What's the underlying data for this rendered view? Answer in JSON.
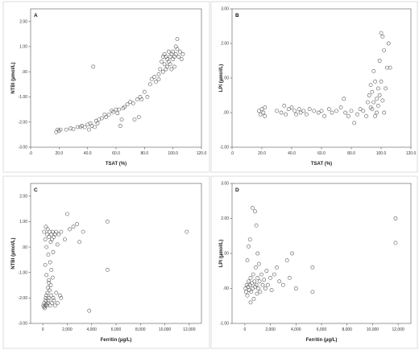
{
  "chart_data": [
    {
      "type": "scatter",
      "panel": "A",
      "xlabel": "TSAT (%)",
      "ylabel": "NTBI (µmol/L)",
      "xlim": [
        0,
        120
      ],
      "ylim": [
        -3,
        2.5
      ],
      "xticks": [
        0,
        20,
        40,
        60,
        80,
        100,
        120
      ],
      "xtick_labels": [
        ".0",
        "20.0",
        "40.0",
        "60.0",
        "80.0",
        "100.0",
        "120.0"
      ],
      "yticks": [
        -3,
        -2,
        -1,
        0,
        1,
        2
      ],
      "ytick_labels": [
        "-3.00",
        "-2.00",
        "-1.00",
        ".00",
        "1.00",
        "2.00"
      ],
      "grid": false,
      "points": [
        [
          18,
          -2.4
        ],
        [
          19,
          -2.3
        ],
        [
          20,
          -2.35
        ],
        [
          21,
          -2.3
        ],
        [
          25,
          -2.3
        ],
        [
          28,
          -2.25
        ],
        [
          30,
          -2.28
        ],
        [
          33,
          -2.2
        ],
        [
          35,
          -2.2
        ],
        [
          36,
          -2.15
        ],
        [
          38,
          -2.2
        ],
        [
          40,
          -2.1
        ],
        [
          41,
          -2.3
        ],
        [
          42,
          -2.05
        ],
        [
          43,
          -2.15
        ],
        [
          45,
          -2.2
        ],
        [
          46,
          -1.95
        ],
        [
          47,
          -2.05
        ],
        [
          48,
          -1.9
        ],
        [
          50,
          -1.85
        ],
        [
          52,
          -1.7
        ],
        [
          53,
          -1.8
        ],
        [
          55,
          -1.7
        ],
        [
          57,
          -1.55
        ],
        [
          58,
          -1.6
        ],
        [
          60,
          -1.5
        ],
        [
          61,
          -1.65
        ],
        [
          62,
          -1.5
        ],
        [
          63,
          -2.15
        ],
        [
          64,
          -1.9
        ],
        [
          65,
          -1.45
        ],
        [
          66,
          -1.4
        ],
        [
          68,
          -1.3
        ],
        [
          70,
          -1.2
        ],
        [
          72,
          -1.25
        ],
        [
          73,
          -1.9
        ],
        [
          75,
          -1.1
        ],
        [
          76,
          -1.8
        ],
        [
          77,
          -1.0
        ],
        [
          78,
          -1.1
        ],
        [
          80,
          -0.8
        ],
        [
          82,
          -1.0
        ],
        [
          84,
          -0.5
        ],
        [
          85,
          -0.3
        ],
        [
          87,
          -0.2
        ],
        [
          88,
          -0.4
        ],
        [
          90,
          -0.1
        ],
        [
          90,
          -0.3
        ],
        [
          91,
          0.1
        ],
        [
          92,
          0.4
        ],
        [
          93,
          0.6
        ],
        [
          93,
          0.0
        ],
        [
          94,
          0.3
        ],
        [
          94,
          0.7
        ],
        [
          95,
          0.6
        ],
        [
          95,
          0.1
        ],
        [
          96,
          0.5
        ],
        [
          96,
          0.2
        ],
        [
          97,
          0.8
        ],
        [
          97,
          0.4
        ],
        [
          98,
          0.6
        ],
        [
          98,
          0.3
        ],
        [
          99,
          0.7
        ],
        [
          99,
          0.1
        ],
        [
          100,
          0.8
        ],
        [
          100,
          0.5
        ],
        [
          101,
          0.6
        ],
        [
          101,
          0.2
        ],
        [
          102,
          1.0
        ],
        [
          102,
          0.7
        ],
        [
          103,
          0.9
        ],
        [
          103,
          1.3
        ],
        [
          104,
          0.6
        ],
        [
          105,
          0.8
        ],
        [
          106,
          0.5
        ],
        [
          107,
          0.7
        ],
        [
          44,
          0.2
        ]
      ]
    },
    {
      "type": "scatter",
      "panel": "B",
      "xlabel": "TSAT (%)",
      "ylabel": "LPI (µmol/L)",
      "xlim": [
        0,
        120
      ],
      "ylim": [
        -1,
        3
      ],
      "xticks": [
        0,
        20,
        40,
        60,
        80,
        100,
        120
      ],
      "xtick_labels": [
        ".0",
        "20.0",
        "40.0",
        "60.0",
        "80.0",
        "100.0",
        "120.0"
      ],
      "yticks": [
        -1,
        0,
        1,
        2,
        3
      ],
      "ytick_labels": [
        "-1.00",
        ".00",
        "1.00",
        "2.00",
        "3.00"
      ],
      "grid": false,
      "points": [
        [
          18,
          0.05
        ],
        [
          19,
          -0.05
        ],
        [
          20,
          0.1
        ],
        [
          21,
          0.0
        ],
        [
          22,
          0.15
        ],
        [
          22,
          -0.1
        ],
        [
          30,
          0.05
        ],
        [
          33,
          0.0
        ],
        [
          35,
          0.2
        ],
        [
          36,
          -0.05
        ],
        [
          38,
          0.1
        ],
        [
          40,
          0.15
        ],
        [
          42,
          0.05
        ],
        [
          43,
          -0.05
        ],
        [
          45,
          0.1
        ],
        [
          46,
          0.0
        ],
        [
          48,
          0.05
        ],
        [
          50,
          -0.05
        ],
        [
          52,
          0.1
        ],
        [
          55,
          0.05
        ],
        [
          58,
          0.0
        ],
        [
          60,
          0.05
        ],
        [
          62,
          -0.1
        ],
        [
          65,
          0.1
        ],
        [
          67,
          0.0
        ],
        [
          70,
          0.05
        ],
        [
          73,
          0.15
        ],
        [
          75,
          0.4
        ],
        [
          76,
          0.0
        ],
        [
          78,
          -0.1
        ],
        [
          80,
          0.05
        ],
        [
          82,
          -0.3
        ],
        [
          84,
          -0.05
        ],
        [
          86,
          0.1
        ],
        [
          88,
          0.05
        ],
        [
          90,
          -0.1
        ],
        [
          91,
          0.3
        ],
        [
          92,
          0.5
        ],
        [
          93,
          0.8
        ],
        [
          93,
          0.15
        ],
        [
          94,
          0.6
        ],
        [
          95,
          1.2
        ],
        [
          95,
          0.3
        ],
        [
          96,
          0.9
        ],
        [
          96,
          -0.1
        ],
        [
          97,
          0.4
        ],
        [
          98,
          0.7
        ],
        [
          98,
          0.2
        ],
        [
          99,
          1.5
        ],
        [
          99,
          0.5
        ],
        [
          100,
          2.3
        ],
        [
          100,
          0.9
        ],
        [
          101,
          2.2
        ],
        [
          101,
          0.35
        ],
        [
          102,
          1.8
        ],
        [
          103,
          0.7
        ],
        [
          104,
          1.3
        ],
        [
          105,
          2.0
        ],
        [
          106,
          1.3
        ],
        [
          97,
          0.0
        ],
        [
          102,
          0.0
        ],
        [
          94,
          0.1
        ]
      ]
    },
    {
      "type": "scatter",
      "panel": "C",
      "xlabel": "Ferritin (µg/L)",
      "ylabel": "NTBI (µmol/L)",
      "xlim": [
        -1000,
        13000
      ],
      "ylim": [
        -3,
        2.5
      ],
      "xticks": [
        0,
        2000,
        4000,
        6000,
        8000,
        10000,
        12000
      ],
      "xtick_labels": [
        "0",
        "2,000",
        "4,000",
        "6,000",
        "8,000",
        "10,000",
        "12,000"
      ],
      "yticks": [
        -3,
        -2,
        -1,
        0,
        1,
        2
      ],
      "ytick_labels": [
        "-3.00",
        "-2.00",
        "-1.00",
        ".00",
        "1.00",
        "2.00"
      ],
      "grid": false,
      "points": [
        [
          50,
          -2.3
        ],
        [
          100,
          -2.35
        ],
        [
          120,
          -2.2
        ],
        [
          150,
          -2.4
        ],
        [
          200,
          -2.3
        ],
        [
          220,
          -2.1
        ],
        [
          250,
          -2.0
        ],
        [
          280,
          -2.25
        ],
        [
          300,
          -1.9
        ],
        [
          350,
          -2.3
        ],
        [
          380,
          -1.8
        ],
        [
          400,
          -2.2
        ],
        [
          420,
          -1.6
        ],
        [
          450,
          -2.1
        ],
        [
          480,
          -1.4
        ],
        [
          500,
          -2.0
        ],
        [
          550,
          -1.7
        ],
        [
          600,
          -2.3
        ],
        [
          650,
          -1.5
        ],
        [
          700,
          -1.9
        ],
        [
          750,
          -2.2
        ],
        [
          800,
          -1.2
        ],
        [
          850,
          -2.0
        ],
        [
          900,
          -2.1
        ],
        [
          1000,
          -2.3
        ],
        [
          1100,
          -1.8
        ],
        [
          1200,
          -2.2
        ],
        [
          1400,
          -1.9
        ],
        [
          1500,
          -2.0
        ],
        [
          100,
          0.6
        ],
        [
          200,
          0.3
        ],
        [
          250,
          0.8
        ],
        [
          300,
          0.0
        ],
        [
          350,
          0.5
        ],
        [
          400,
          0.7
        ],
        [
          450,
          -0.3
        ],
        [
          500,
          0.4
        ],
        [
          550,
          0.6
        ],
        [
          600,
          -0.6
        ],
        [
          650,
          0.2
        ],
        [
          700,
          0.5
        ],
        [
          750,
          0.3
        ],
        [
          800,
          0.6
        ],
        [
          850,
          -0.2
        ],
        [
          900,
          0.4
        ],
        [
          1000,
          0.5
        ],
        [
          1100,
          0.6
        ],
        [
          1200,
          0.1
        ],
        [
          1300,
          0.5
        ],
        [
          1500,
          0.6
        ],
        [
          1800,
          0.3
        ],
        [
          2000,
          1.3
        ],
        [
          2200,
          0.7
        ],
        [
          2500,
          0.8
        ],
        [
          2800,
          0.9
        ],
        [
          3000,
          0.2
        ],
        [
          3300,
          0.6
        ],
        [
          3800,
          -2.5
        ],
        [
          5300,
          1.0
        ],
        [
          5300,
          -0.9
        ],
        [
          11800,
          0.6
        ],
        [
          300,
          -1.1
        ],
        [
          500,
          -1.3
        ],
        [
          700,
          -0.9
        ],
        [
          200,
          -0.7
        ]
      ]
    },
    {
      "type": "scatter",
      "panel": "D",
      "xlabel": "Ferritin (µg/L)",
      "ylabel": "LPI (µmol/L)",
      "xlim": [
        -1000,
        13000
      ],
      "ylim": [
        -1,
        3
      ],
      "xticks": [
        0,
        2000,
        4000,
        6000,
        8000,
        10000,
        12000
      ],
      "xtick_labels": [
        "0",
        "2,000",
        "4,000",
        "6,000",
        "8,000",
        "10,000",
        "12,000"
      ],
      "yticks": [
        -1,
        0,
        1,
        2,
        3
      ],
      "ytick_labels": [
        "-1.00",
        ".00",
        "1.00",
        "2.00",
        "3.00"
      ],
      "grid": false,
      "points": [
        [
          50,
          0.0
        ],
        [
          100,
          -0.1
        ],
        [
          150,
          0.1
        ],
        [
          200,
          -0.2
        ],
        [
          250,
          0.05
        ],
        [
          300,
          0.2
        ],
        [
          350,
          -0.05
        ],
        [
          400,
          0.1
        ],
        [
          450,
          0.3
        ],
        [
          500,
          -0.1
        ],
        [
          550,
          0.15
        ],
        [
          600,
          0.0
        ],
        [
          650,
          0.4
        ],
        [
          700,
          -0.3
        ],
        [
          750,
          0.2
        ],
        [
          800,
          0.05
        ],
        [
          850,
          0.6
        ],
        [
          900,
          0.1
        ],
        [
          950,
          -0.15
        ],
        [
          1000,
          0.3
        ],
        [
          1050,
          0.0
        ],
        [
          1100,
          0.7
        ],
        [
          1150,
          0.2
        ],
        [
          1200,
          -0.1
        ],
        [
          1300,
          0.4
        ],
        [
          1400,
          0.1
        ],
        [
          1500,
          0.25
        ],
        [
          1600,
          0.0
        ],
        [
          1700,
          0.5
        ],
        [
          1800,
          0.1
        ],
        [
          2000,
          0.3
        ],
        [
          2100,
          -0.05
        ],
        [
          2300,
          0.4
        ],
        [
          2500,
          0.6
        ],
        [
          2700,
          0.2
        ],
        [
          3000,
          0.1
        ],
        [
          3300,
          0.8
        ],
        [
          3500,
          0.3
        ],
        [
          3700,
          1.0
        ],
        [
          4000,
          0.0
        ],
        [
          600,
          2.3
        ],
        [
          800,
          2.2
        ],
        [
          900,
          1.8
        ],
        [
          400,
          1.4
        ],
        [
          5300,
          0.6
        ],
        [
          5300,
          -0.1
        ],
        [
          11800,
          2.0
        ],
        [
          11800,
          1.3
        ],
        [
          200,
          0.8
        ],
        [
          300,
          1.2
        ],
        [
          1000,
          1.0
        ],
        [
          450,
          -0.4
        ]
      ]
    }
  ]
}
